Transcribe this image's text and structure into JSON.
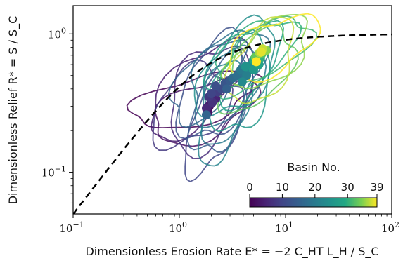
{
  "chart_data": {
    "type": "scatter",
    "title": "",
    "xlabel": "Dimensionless Erosion Rate E* = −2 C_HT L_H / S_C",
    "ylabel": "Dimensionless Relief R* = S / S_C",
    "xscale": "log",
    "yscale": "log",
    "xlim": [
      0.1,
      100
    ],
    "ylim": [
      0.05,
      1.6
    ],
    "x_ticks": [
      {
        "value": 0.1,
        "base": "10",
        "exp": "−1"
      },
      {
        "value": 1,
        "base": "10",
        "exp": "0"
      },
      {
        "value": 10,
        "base": "10",
        "exp": "1"
      },
      {
        "value": 100,
        "base": "10",
        "exp": "2"
      }
    ],
    "y_ticks": [
      {
        "value": 0.1,
        "base": "10",
        "exp": "−1"
      },
      {
        "value": 1,
        "base": "10",
        "exp": "0"
      }
    ],
    "reference_curve": {
      "style": "black dashed",
      "formula": "R* = (sqrt(1 + E*^2) - 1) / E*"
    },
    "colorbar": {
      "title": "Basin No.",
      "colormap": "viridis",
      "ticks": [
        "0",
        "10",
        "20",
        "30",
        "39"
      ],
      "range": [
        0,
        39
      ],
      "placement": "lower-right"
    },
    "points": [
      {
        "basin": 0,
        "x": 1.9,
        "y": 0.3
      },
      {
        "basin": 1,
        "x": 2.0,
        "y": 0.33
      },
      {
        "basin": 2,
        "x": 1.85,
        "y": 0.27
      },
      {
        "basin": 3,
        "x": 2.1,
        "y": 0.36
      },
      {
        "basin": 4,
        "x": 1.95,
        "y": 0.31
      },
      {
        "basin": 5,
        "x": 2.2,
        "y": 0.34
      },
      {
        "basin": 6,
        "x": 1.8,
        "y": 0.29
      },
      {
        "basin": 7,
        "x": 2.05,
        "y": 0.32
      },
      {
        "basin": 8,
        "x": 1.9,
        "y": 0.35
      },
      {
        "basin": 9,
        "x": 2.3,
        "y": 0.38
      },
      {
        "basin": 10,
        "x": 2.0,
        "y": 0.37
      },
      {
        "basin": 11,
        "x": 2.5,
        "y": 0.4
      },
      {
        "basin": 12,
        "x": 2.2,
        "y": 0.42
      },
      {
        "basin": 13,
        "x": 2.7,
        "y": 0.44
      },
      {
        "basin": 14,
        "x": 3.0,
        "y": 0.46
      },
      {
        "basin": 15,
        "x": 2.8,
        "y": 0.4
      },
      {
        "basin": 16,
        "x": 1.8,
        "y": 0.26
      },
      {
        "basin": 17,
        "x": 3.2,
        "y": 0.48
      },
      {
        "basin": 18,
        "x": 3.5,
        "y": 0.5
      },
      {
        "basin": 19,
        "x": 4.0,
        "y": 0.52
      },
      {
        "basin": 20,
        "x": 3.8,
        "y": 0.55
      },
      {
        "basin": 21,
        "x": 4.3,
        "y": 0.5
      },
      {
        "basin": 22,
        "x": 4.5,
        "y": 0.57
      },
      {
        "basin": 23,
        "x": 3.9,
        "y": 0.45
      },
      {
        "basin": 24,
        "x": 4.8,
        "y": 0.6
      },
      {
        "basin": 25,
        "x": 4.2,
        "y": 0.58
      },
      {
        "basin": 26,
        "x": 5.0,
        "y": 0.55
      },
      {
        "basin": 27,
        "x": 5.3,
        "y": 0.62
      },
      {
        "basin": 28,
        "x": 5.6,
        "y": 0.6
      },
      {
        "basin": 29,
        "x": 5.0,
        "y": 0.65
      },
      {
        "basin": 30,
        "x": 5.8,
        "y": 0.67
      },
      {
        "basin": 31,
        "x": 5.5,
        "y": 0.7
      },
      {
        "basin": 32,
        "x": 6.0,
        "y": 0.72
      },
      {
        "basin": 33,
        "x": 5.2,
        "y": 0.68
      },
      {
        "basin": 34,
        "x": 6.3,
        "y": 0.75
      },
      {
        "basin": 35,
        "x": 6.6,
        "y": 0.76
      },
      {
        "basin": 36,
        "x": 5.7,
        "y": 0.73
      },
      {
        "basin": 37,
        "x": 6.1,
        "y": 0.78
      },
      {
        "basin": 38,
        "x": 5.9,
        "y": 0.74
      },
      {
        "basin": 39,
        "x": 5.3,
        "y": 0.63
      }
    ],
    "contours": [
      {
        "basin": 0,
        "cx": 1.4,
        "cy": 0.33,
        "a": 0.6,
        "b": 0.17,
        "angle": 0.2
      },
      {
        "basin": 2,
        "cx": 1.7,
        "cy": 0.28,
        "a": 0.5,
        "b": 0.2,
        "angle": 0.3
      },
      {
        "basin": 4,
        "cx": 1.5,
        "cy": 0.4,
        "a": 0.55,
        "b": 0.22,
        "angle": 0.6
      },
      {
        "basin": 6,
        "cx": 1.9,
        "cy": 0.35,
        "a": 0.45,
        "b": 0.3,
        "angle": 0.8
      },
      {
        "basin": 8,
        "cx": 1.3,
        "cy": 0.3,
        "a": 0.4,
        "b": 0.25,
        "angle": 0.5
      },
      {
        "basin": 10,
        "cx": 2.1,
        "cy": 0.22,
        "a": 0.4,
        "b": 0.2,
        "angle": 1.0
      },
      {
        "basin": 12,
        "cx": 2.2,
        "cy": 0.4,
        "a": 0.42,
        "b": 0.28,
        "angle": 0.9
      },
      {
        "basin": 14,
        "cx": 2.4,
        "cy": 0.3,
        "a": 0.38,
        "b": 0.22,
        "angle": 1.1
      },
      {
        "basin": 16,
        "cx": 1.8,
        "cy": 0.45,
        "a": 0.4,
        "b": 0.2,
        "angle": 0.7
      },
      {
        "basin": 18,
        "cx": 2.8,
        "cy": 0.5,
        "a": 0.42,
        "b": 0.25,
        "angle": 0.8
      },
      {
        "basin": 20,
        "cx": 3.0,
        "cy": 0.38,
        "a": 0.4,
        "b": 0.22,
        "angle": 1.0
      },
      {
        "basin": 22,
        "cx": 2.6,
        "cy": 0.28,
        "a": 0.4,
        "b": 0.2,
        "angle": 1.2
      },
      {
        "basin": 24,
        "cx": 3.5,
        "cy": 0.55,
        "a": 0.45,
        "b": 0.24,
        "angle": 0.7
      },
      {
        "basin": 26,
        "cx": 3.8,
        "cy": 0.42,
        "a": 0.38,
        "b": 0.24,
        "angle": 1.0
      },
      {
        "basin": 28,
        "cx": 4.0,
        "cy": 0.6,
        "a": 0.4,
        "b": 0.22,
        "angle": 0.6
      },
      {
        "basin": 30,
        "cx": 5.0,
        "cy": 0.7,
        "a": 0.42,
        "b": 0.2,
        "angle": 0.5
      },
      {
        "basin": 31,
        "cx": 6.5,
        "cy": 0.75,
        "a": 0.45,
        "b": 0.18,
        "angle": 0.4
      },
      {
        "basin": 33,
        "cx": 5.5,
        "cy": 0.55,
        "a": 0.4,
        "b": 0.22,
        "angle": 0.7
      },
      {
        "basin": 35,
        "cx": 7.0,
        "cy": 0.72,
        "a": 0.42,
        "b": 0.2,
        "angle": 0.5
      },
      {
        "basin": 37,
        "cx": 6.0,
        "cy": 0.62,
        "a": 0.38,
        "b": 0.22,
        "angle": 0.8
      },
      {
        "basin": 39,
        "cx": 7.5,
        "cy": 0.8,
        "a": 0.45,
        "b": 0.18,
        "angle": 0.35
      }
    ]
  }
}
